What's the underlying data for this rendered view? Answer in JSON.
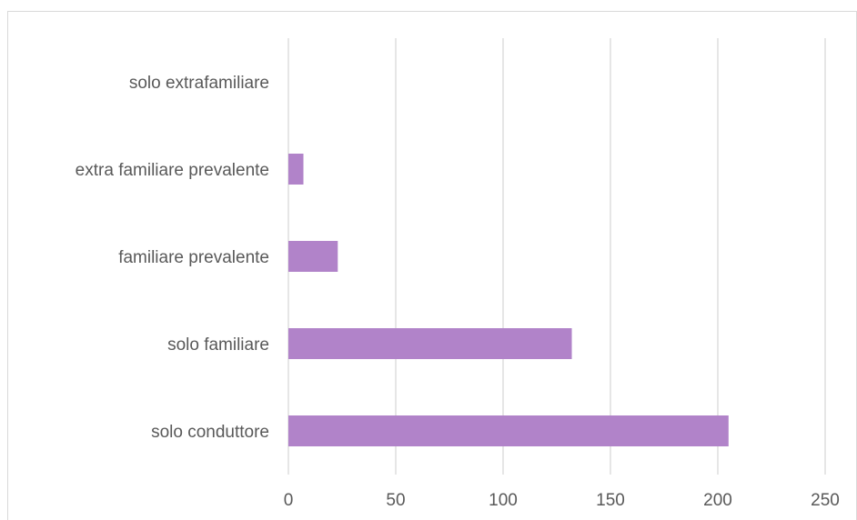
{
  "chart_data": {
    "type": "bar",
    "orientation": "horizontal",
    "categories": [
      "solo conduttore",
      "solo familiare",
      "familiare prevalente",
      "extra familiare prevalente",
      "solo extrafamiliare"
    ],
    "values": [
      205,
      132,
      23,
      7,
      0
    ],
    "xlim": [
      0,
      250
    ],
    "x_ticks": [
      "0",
      "50",
      "100",
      "150",
      "200",
      "250"
    ],
    "grid": "vertical",
    "legend": "none",
    "bar_color": "#b183c9",
    "grid_color": "#d9d9d9",
    "text_color": "#595959"
  }
}
